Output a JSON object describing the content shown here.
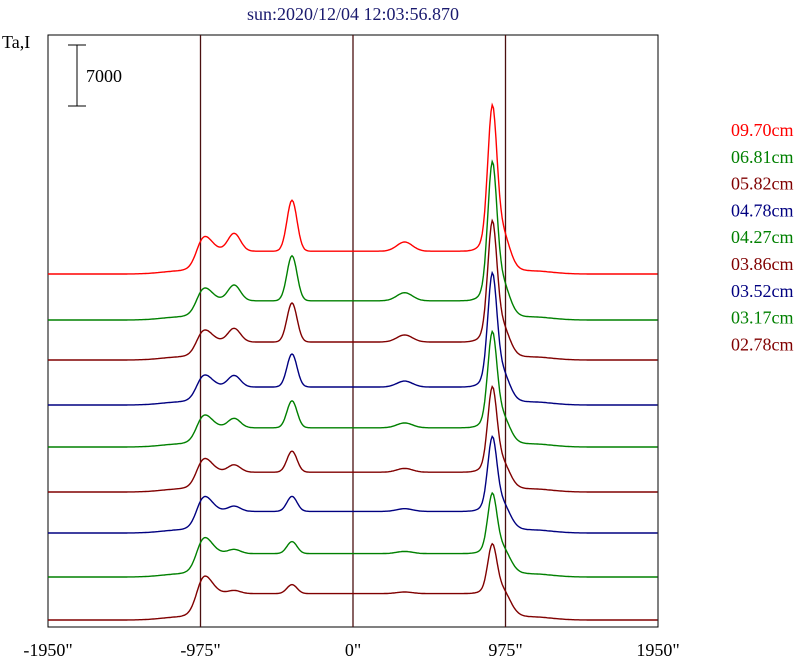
{
  "chart_data": {
    "type": "line",
    "title": "sun:2020/12/04 12:03:56.870",
    "ylabel": "Ta,I",
    "scale_bar": "7000",
    "xlim": [
      -1950,
      1950
    ],
    "x_ticks": [
      -1950,
      -975,
      0,
      975,
      1950
    ],
    "x_tick_labels": [
      "-1950\"",
      "-975\"",
      "0\"",
      "975\"",
      "1950\""
    ],
    "vlines": [
      -975,
      0,
      975
    ],
    "series": [
      {
        "name": "09.70cm",
        "color": "#ff0000",
        "peak_left": 0.85,
        "peak_right": 2.05,
        "knee_left": 0.35,
        "plateau": 0.38
      },
      {
        "name": "06.81cm",
        "color": "#008000",
        "peak_left": 0.75,
        "peak_right": 1.95,
        "knee_left": 0.3,
        "plateau": 0.32
      },
      {
        "name": "05.82cm",
        "color": "#800000",
        "peak_left": 0.65,
        "peak_right": 1.7,
        "knee_left": 0.28,
        "plateau": 0.3
      },
      {
        "name": "04.78cm",
        "color": "#000080",
        "peak_left": 0.55,
        "peak_right": 1.6,
        "knee_left": 0.28,
        "plateau": 0.3
      },
      {
        "name": "04.27cm",
        "color": "#008000",
        "peak_left": 0.45,
        "peak_right": 1.35,
        "knee_left": 0.3,
        "plateau": 0.32
      },
      {
        "name": "03.86cm",
        "color": "#800000",
        "peak_left": 0.35,
        "peak_right": 1.2,
        "knee_left": 0.32,
        "plateau": 0.33
      },
      {
        "name": "03.52cm",
        "color": "#000080",
        "peak_left": 0.25,
        "peak_right": 1.05,
        "knee_left": 0.35,
        "plateau": 0.36
      },
      {
        "name": "03.17cm",
        "color": "#008000",
        "peak_left": 0.2,
        "peak_right": 0.85,
        "knee_left": 0.38,
        "plateau": 0.39
      },
      {
        "name": "02.78cm",
        "color": "#800000",
        "peak_left": 0.15,
        "peak_right": 0.7,
        "knee_left": 0.42,
        "plateau": 0.44
      }
    ]
  }
}
